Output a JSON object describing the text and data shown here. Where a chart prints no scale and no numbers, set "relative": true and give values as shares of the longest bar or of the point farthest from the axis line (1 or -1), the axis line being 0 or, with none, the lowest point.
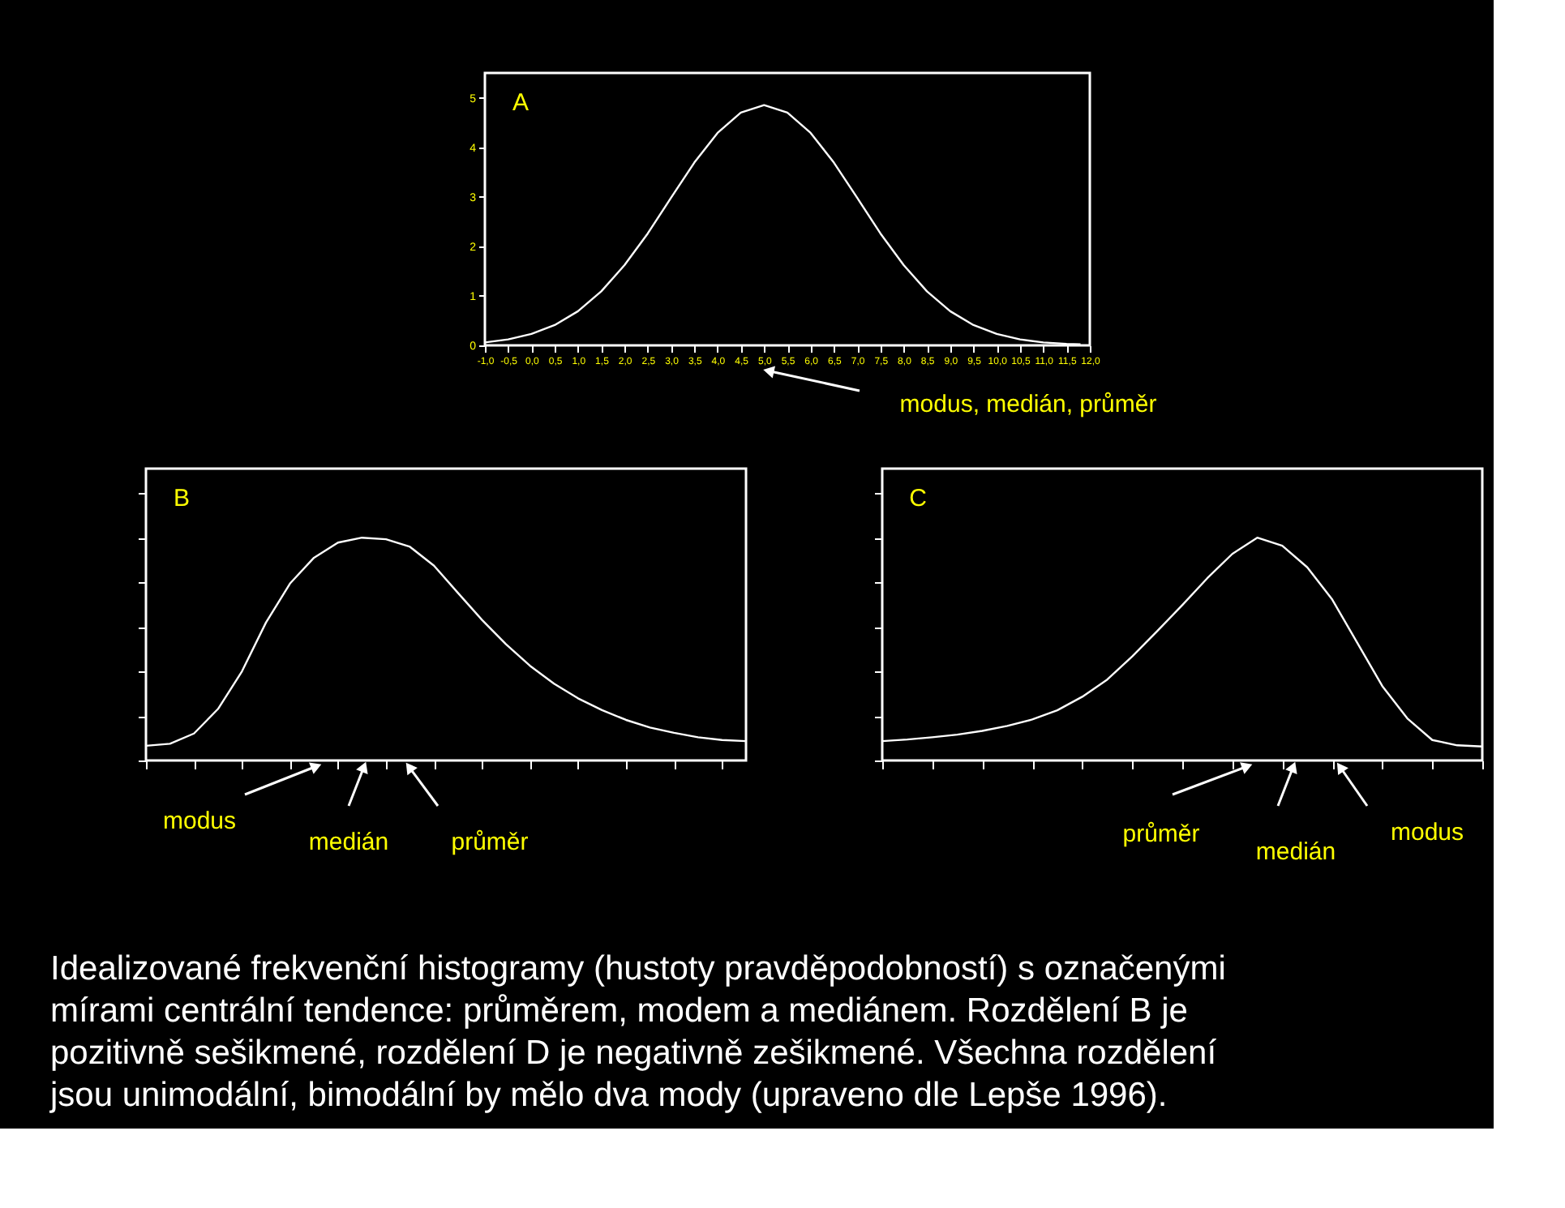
{
  "chart_data": [
    {
      "type": "line",
      "title": "A",
      "x": [
        -1,
        -0.5,
        0,
        0.5,
        1,
        1.5,
        2,
        2.5,
        3,
        3.5,
        4,
        4.5,
        5,
        5.5,
        6,
        6.5,
        7,
        7.5,
        8,
        8.5,
        9,
        9.5,
        10,
        10.5,
        11,
        11.5,
        11.8
      ],
      "series": [
        {
          "color": "#ffffff",
          "values": [
            0.06,
            0.12,
            0.23,
            0.41,
            0.69,
            1.09,
            1.62,
            2.26,
            2.98,
            3.69,
            4.29,
            4.7,
            4.85,
            4.7,
            4.29,
            3.69,
            2.98,
            2.26,
            1.62,
            1.09,
            0.69,
            0.41,
            0.23,
            0.12,
            0.06,
            0.03,
            0.02
          ]
        }
      ],
      "xlim": [
        -1,
        12
      ],
      "xticks": [
        {
          "value": -1,
          "label": "-1,0"
        },
        {
          "value": -0.5,
          "label": "-0,5"
        },
        {
          "value": 0,
          "label": "0,0"
        },
        {
          "value": 0.5,
          "label": "0,5"
        },
        {
          "value": 1,
          "label": "1,0"
        },
        {
          "value": 1.5,
          "label": "1,5"
        },
        {
          "value": 2,
          "label": "2,0"
        },
        {
          "value": 2.5,
          "label": "2,5"
        },
        {
          "value": 3,
          "label": "3,0"
        },
        {
          "value": 3.5,
          "label": "3,5"
        },
        {
          "value": 4,
          "label": "4,0"
        },
        {
          "value": 4.5,
          "label": "4,5"
        },
        {
          "value": 5,
          "label": "5,0"
        },
        {
          "value": 5.5,
          "label": "5,5"
        },
        {
          "value": 6,
          "label": "6,0"
        },
        {
          "value": 6.5,
          "label": "6,5"
        },
        {
          "value": 7,
          "label": "7,0"
        },
        {
          "value": 7.5,
          "label": "7,5"
        },
        {
          "value": 8,
          "label": "8,0"
        },
        {
          "value": 8.5,
          "label": "8,5"
        },
        {
          "value": 9,
          "label": "9,0"
        },
        {
          "value": 9.5,
          "label": "9,5"
        },
        {
          "value": 10,
          "label": "10,0"
        },
        {
          "value": 10.5,
          "label": "10,5"
        },
        {
          "value": 11,
          "label": "11,0"
        },
        {
          "value": 11.5,
          "label": "11,5"
        },
        {
          "value": 12,
          "label": "12,0"
        }
      ],
      "ylim": [
        0,
        5.5
      ],
      "yticks": [
        0,
        1,
        2,
        3,
        4,
        5
      ],
      "grid": false,
      "legend": false,
      "annotations": [
        "modus, medián, průměr",
        "Idealizované frekvenční histogramy (hustoty pravděpodobností) s označenými mírami centrální tendence: průměrem, modem a mediánem. Rozdělení B je pozitivně sešikmené, rozdělení D je negativně zešikmené. Všechna rozdělení jsou unimodální, bimodální by mělo dva mody (upraveno dle Lepše 1996)."
      ]
    },
    {
      "type": "line",
      "title": "B",
      "relative": true,
      "grid": false,
      "legend": false,
      "categories": [
        null,
        null,
        null,
        null,
        null,
        null,
        null,
        null,
        null,
        null,
        null,
        null,
        null,
        null,
        null,
        null,
        null,
        null,
        null,
        null,
        null,
        null,
        null,
        null,
        null,
        null
      ],
      "series": [
        {
          "color": "#ffffff",
          "values": [
            0.066,
            0.075,
            0.121,
            0.231,
            0.4,
            0.619,
            0.794,
            0.91,
            0.978,
            1.0,
            0.993,
            0.959,
            0.874,
            0.752,
            0.631,
            0.522,
            0.425,
            0.345,
            0.279,
            0.226,
            0.182,
            0.148,
            0.124,
            0.104,
            0.092,
            0.087
          ]
        }
      ],
      "annotations": [
        "modus",
        "medián",
        "průměr"
      ]
    },
    {
      "type": "line",
      "title": "C",
      "relative": true,
      "grid": false,
      "legend": false,
      "categories": [
        null,
        null,
        null,
        null,
        null,
        null,
        null,
        null,
        null,
        null,
        null,
        null,
        null,
        null,
        null,
        null,
        null,
        null,
        null,
        null,
        null,
        null,
        null,
        null,
        null
      ],
      "series": [
        {
          "color": "#ffffff",
          "values": [
            0.087,
            0.094,
            0.104,
            0.116,
            0.133,
            0.155,
            0.184,
            0.225,
            0.286,
            0.363,
            0.467,
            0.581,
            0.697,
            0.818,
            0.927,
            1.0,
            0.964,
            0.867,
            0.722,
            0.528,
            0.334,
            0.189,
            0.092,
            0.068,
            0.063
          ]
        }
      ],
      "annotations": [
        "průměr",
        "medián",
        "modus"
      ]
    }
  ]
}
